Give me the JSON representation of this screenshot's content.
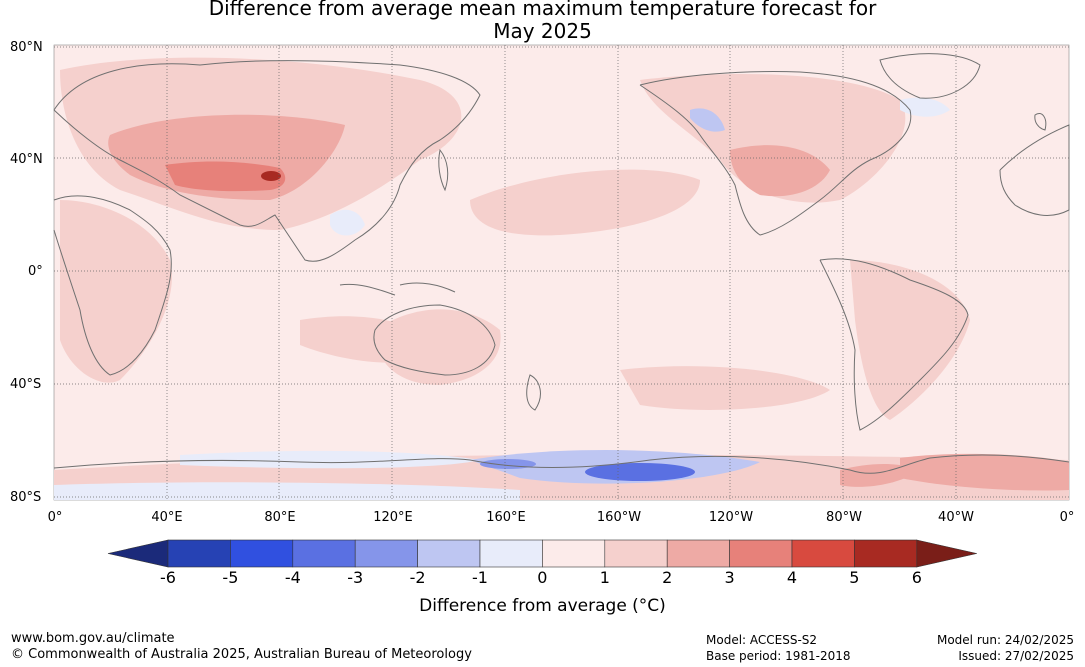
{
  "title": {
    "line1": "Difference from average mean maximum temperature forecast for",
    "line2": "May 2025"
  },
  "map": {
    "lat_labels": [
      "80°N",
      "40°N",
      "0°",
      "40°S",
      "80°S"
    ],
    "lon_labels": [
      "0°",
      "40°E",
      "80°E",
      "120°E",
      "160°E",
      "160°W",
      "120°W",
      "80°W",
      "40°W",
      "0°"
    ],
    "ocean_background": "#fcebea",
    "coastline_color": "#707070"
  },
  "colorbar": {
    "label": "Difference from average (°C)",
    "tick_labels": [
      "-6",
      "-5",
      "-4",
      "-3",
      "-2",
      "-1",
      "0",
      "1",
      "2",
      "3",
      "4",
      "5",
      "6"
    ],
    "colors": [
      "#1b2a7a",
      "#2642b4",
      "#3050e0",
      "#5a70e2",
      "#8595ea",
      "#bec6f2",
      "#e8ecfa",
      "#fcebea",
      "#f5d0cd",
      "#eeaaa5",
      "#e7817a",
      "#d84a3f",
      "#a82a22",
      "#7a1e18"
    ]
  },
  "footer": {
    "url": "www.bom.gov.au/climate",
    "copyright": "© Commonwealth of Australia 2025, Australian Bureau of Meteorology",
    "model": "Model: ACCESS-S2",
    "base_period": "Base period: 1981-2018",
    "model_run": "Model run: 24/02/2025",
    "issued": "Issued: 27/02/2025"
  }
}
